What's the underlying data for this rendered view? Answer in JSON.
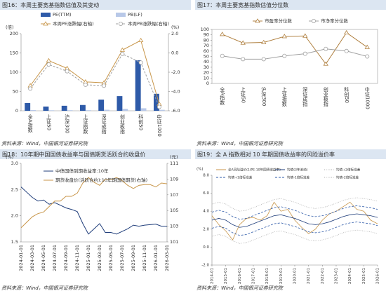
{
  "chart_data": [
    {
      "type": "bar",
      "title": "图16：本周主要宽基指数估值及其变动",
      "source": "资料来源：Wind，中国银河证券研究院",
      "y_label": "(倍)",
      "y2_label": "(%)",
      "categories": [
        "全A指数",
        "上证50",
        "沪深300",
        "上证指数",
        "深证成指",
        "创业板指",
        "科创50",
        "中证1000"
      ],
      "series": [
        {
          "name": "PE(TTM)",
          "type": "bar",
          "color": "#2e5aa8",
          "values": [
            20,
            11,
            13,
            15,
            29,
            38,
            131,
            44
          ]
        },
        {
          "name": "PB(LF)",
          "type": "bar",
          "color": "#b8c8e8",
          "values": [
            1.8,
            1.3,
            1.5,
            1.5,
            2.6,
            5,
            6.5,
            2.5
          ]
        },
        {
          "name": "本周PE涨跌幅(右轴)",
          "type": "line",
          "axis": "y2",
          "marker": "triangle",
          "color": "#c8964a",
          "values": [
            -3.4,
            -0.8,
            -1.6,
            -3.0,
            -3.1,
            0.3,
            1.3,
            -5.3
          ]
        },
        {
          "name": "本周PB涨跌幅(右轴)",
          "type": "line",
          "axis": "y2",
          "marker": "circle",
          "dash": "3,2",
          "color": "#a0a0a0",
          "values": [
            -3.7,
            -1.2,
            -1.9,
            -3.3,
            -3.4,
            -0.1,
            -1.0,
            -5.6
          ]
        }
      ],
      "ylim": [
        0,
        200
      ],
      "yticks": [
        0,
        50,
        100,
        150,
        200
      ],
      "y2lim": [
        -6,
        2
      ],
      "y2ticks": [
        {
          "value": -6,
          "label": "-6.0"
        },
        {
          "value": -4,
          "label": "-4.0"
        },
        {
          "value": -2,
          "label": "-2.0"
        },
        {
          "value": 0,
          "label": "0.0"
        },
        {
          "value": 2,
          "label": "2.0"
        }
      ],
      "negative_color": "#e00000"
    },
    {
      "type": "line",
      "title": "图17：本周主要宽基指数估值分位数",
      "source": "资料来源：Wind，中国银河证券研究院",
      "categories": [
        "全A指数",
        "上证50",
        "沪深300",
        "上证指数",
        "深证成指",
        "创业板指",
        "科创50",
        "中证1000"
      ],
      "series": [
        {
          "name": "市盈率分位数",
          "type": "line",
          "marker": "triangle",
          "color": "#b08040",
          "values": [
            91,
            75,
            76,
            87,
            88,
            36,
            94,
            67
          ]
        },
        {
          "name": "市净率分位数",
          "type": "line",
          "marker": "circle",
          "color": "#a0a0a0",
          "values": [
            51,
            45,
            45,
            51,
            55,
            64,
            60,
            50
          ]
        }
      ],
      "ylim": [
        0,
        100
      ],
      "yticks": [
        0,
        10,
        20,
        30,
        40,
        50,
        60,
        70,
        80,
        90,
        100
      ]
    },
    {
      "type": "line",
      "title": "图18：10年期中国国债收益率与国债期货活跃合约收盘价",
      "source": "资料来源：Wind，中国银河证券研究院",
      "y_label": "(%)",
      "y2_label": "(元)",
      "x": [
        "2024-01-01",
        "2024-02-01",
        "2024-03-01",
        "2024-04-01",
        "2024-05-01",
        "2024-06-01",
        "2024-07-01",
        "2024-08-01",
        "2024-09-01",
        "2024-10-01",
        "2024-11-01",
        "2024-12-01",
        "2025-01-01",
        "2025-02-01",
        "2025-03-01",
        "2025-04-01",
        "2025-05-01",
        "2025-06-01",
        "2025-07-01",
        "2025-08-01",
        "2025-09-01",
        "2025-10-01",
        "2025-11-01",
        "2025-12-01",
        "2026-01-01",
        "2026-02-01",
        "2026-03-01"
      ],
      "xticks": [
        "2024-01-01",
        "2024-03-01",
        "2024-05-01",
        "2024-07-01",
        "2024-09-01",
        "2024-11-01",
        "2025-01-01",
        "2025-03-01",
        "2025-05-01",
        "2025-07-01",
        "2025-09-01",
        "2025-11-01",
        "2026-01-01",
        "2026-03-01"
      ],
      "series": [
        {
          "name": "中债国债到期收益率:10年",
          "type": "line",
          "color": "#1f3d7a",
          "values": [
            2.55,
            2.45,
            2.35,
            2.28,
            2.3,
            2.22,
            2.25,
            2.2,
            2.15,
            2.12,
            2.08,
            1.85,
            1.65,
            1.75,
            1.85,
            1.68,
            1.68,
            1.65,
            1.7,
            1.75,
            1.82,
            1.8,
            1.82,
            1.83,
            1.84,
            1.8,
            1.8
          ]
        },
        {
          "name": "期货收盘价(活跃合约):10年期国债期货(右轴)",
          "type": "line",
          "axis": "y2",
          "color": "#c8964a",
          "values": [
            102.8,
            103.5,
            104.2,
            104.6,
            104.8,
            105.5,
            106.2,
            106.2,
            106.8,
            106.8,
            107.2,
            108.5,
            109.2,
            108.6,
            108.2,
            109,
            108.9,
            109.2,
            108.8,
            108.2,
            107.8,
            108.2,
            108.3,
            108.3,
            108,
            108.5,
            108.4
          ]
        }
      ],
      "ylim": [
        1.5,
        3
      ],
      "yticks": [
        1.5,
        {
          "value": 2,
          "label": "2.0"
        },
        2.5,
        {
          "value": 3,
          "label": "3.0"
        }
      ],
      "y2lim": [
        101,
        111
      ],
      "y2ticks": [
        101,
        103,
        105,
        107,
        109,
        111
      ]
    },
    {
      "type": "line",
      "title": "图19：全 A 指数相对 10 年期国债收益率的风险溢价率",
      "source": "资料来源：Wind，中国银河证券研究院",
      "y_label": "(%)",
      "x": [
        2014,
        2014.5,
        2015,
        2015.5,
        2016,
        2016.5,
        2017,
        2017.5,
        2018,
        2018.5,
        2019,
        2019.5,
        2020,
        2020.5,
        2021,
        2021.5,
        2022,
        2022.5,
        2023,
        2023.5,
        2024,
        2024.5,
        2025,
        2025.5,
        2026
      ],
      "xlim": [
        2014,
        2026
      ],
      "xticks": [
        {
          "value": 2014,
          "label": "2014-01"
        },
        {
          "value": 2015,
          "label": "2015-01"
        },
        {
          "value": 2016,
          "label": "2016-01"
        },
        {
          "value": 2017,
          "label": "2017-01"
        },
        {
          "value": 2018,
          "label": "2018-01"
        },
        {
          "value": 2019,
          "label": "2019-01"
        },
        {
          "value": 2020,
          "label": "2020-01"
        },
        {
          "value": 2021,
          "label": "2021-01"
        },
        {
          "value": 2022,
          "label": "2022-01"
        },
        {
          "value": 2023,
          "label": "2023-01"
        },
        {
          "value": 2024,
          "label": "2024-01"
        },
        {
          "value": 2025,
          "label": "2025-01"
        },
        {
          "value": 2026,
          "label": "2026-01"
        }
      ],
      "series": [
        {
          "name": "全A风险溢价(1/PE-10年国债收益率)",
          "type": "line",
          "color": "#c8964a",
          "values": [
            3.5,
            2.5,
            1.8,
            0.8,
            2.5,
            3.2,
            3.3,
            3.0,
            3.5,
            5.0,
            4.0,
            4.2,
            3.0,
            2.2,
            1.5,
            2.0,
            3.0,
            3.7,
            4.0,
            4.5,
            5.0,
            4.2,
            4.0,
            3.0,
            2.6
          ]
        },
        {
          "name": "均值(3年滚动)",
          "type": "line",
          "color": "#1f3d7a",
          "values": [
            3.0,
            3.2,
            3.0,
            2.5,
            2.2,
            2.3,
            2.6,
            2.9,
            3.2,
            3.5,
            3.6,
            3.4,
            3.2,
            2.9,
            2.6,
            2.5,
            2.6,
            2.8,
            3.1,
            3.4,
            3.6,
            3.7,
            3.6,
            3.5,
            3.3
          ]
        },
        {
          "name": "均值+2倍标准差",
          "type": "line",
          "dash": "1,1.5",
          "color": "#b0b0b0",
          "values": [
            4.8,
            5.0,
            4.8,
            4.3,
            4.0,
            4.1,
            4.4,
            4.7,
            5.0,
            5.3,
            5.4,
            5.2,
            5.0,
            4.7,
            4.4,
            4.3,
            4.4,
            4.6,
            4.9,
            5.2,
            5.4,
            5.5,
            5.4,
            5.3,
            5.1
          ]
        },
        {
          "name": "均值+1倍标准差",
          "type": "line",
          "dash": "3,2",
          "color": "#2e5aa8",
          "values": [
            3.9,
            4.1,
            3.9,
            3.4,
            3.1,
            3.2,
            3.5,
            3.8,
            4.1,
            4.4,
            4.5,
            4.3,
            4.1,
            3.8,
            3.5,
            3.4,
            3.5,
            3.7,
            4.0,
            4.3,
            4.5,
            4.6,
            4.5,
            4.4,
            4.2
          ]
        },
        {
          "name": "均值-1倍标准差",
          "type": "line",
          "dash": "3,2",
          "color": "#2e5aa8",
          "values": [
            2.1,
            2.3,
            2.1,
            1.6,
            1.3,
            1.4,
            1.7,
            2.0,
            2.3,
            2.6,
            2.7,
            2.5,
            2.3,
            2.0,
            1.7,
            1.6,
            1.7,
            1.9,
            2.2,
            2.5,
            2.7,
            2.8,
            2.7,
            2.6,
            2.4
          ]
        },
        {
          "name": "均值-2倍标准差",
          "type": "line",
          "dash": "1,1.5",
          "color": "#b0b0b0",
          "values": [
            1.2,
            1.4,
            1.2,
            0.7,
            0.4,
            0.5,
            0.8,
            1.1,
            1.4,
            1.7,
            1.8,
            1.6,
            1.4,
            1.1,
            0.8,
            0.7,
            0.8,
            1.0,
            1.3,
            1.6,
            1.8,
            1.9,
            1.8,
            1.7,
            1.5
          ]
        }
      ],
      "ylim": [
        -2,
        8
      ],
      "yticks": [
        {
          "value": -2,
          "label": "-2.0"
        },
        {
          "value": 0,
          "label": "0.0"
        },
        {
          "value": 2,
          "label": "2.0"
        },
        {
          "value": 4,
          "label": "4.0"
        },
        {
          "value": 6,
          "label": "6.0"
        },
        {
          "value": 8,
          "label": "8.0"
        }
      ],
      "negative_color": "#e00000"
    }
  ]
}
